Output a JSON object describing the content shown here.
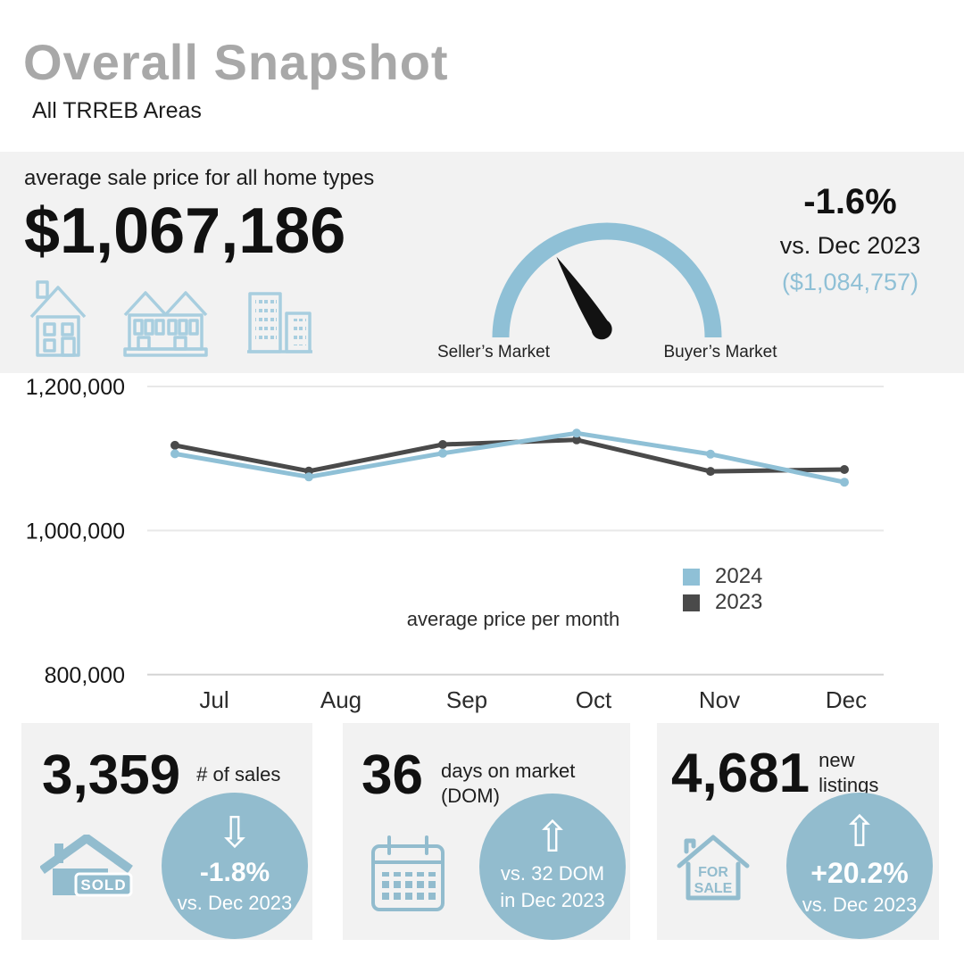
{
  "colors": {
    "panel": "#F2F2F2",
    "accent": "#8FC0D6",
    "badge": "#92BCCE",
    "iconlight": "#A8CEDF",
    "dark": "#4A4A4A",
    "titlegray": "#A8A8A8"
  },
  "header": {
    "title": "Overall Snapshot",
    "subtitle": "All TRREB Areas"
  },
  "price_panel": {
    "label": "average sale price for all home types",
    "value": "$1,067,186",
    "change_pct": "-1.6%",
    "change_vs": "vs. Dec 2023",
    "prev_value": "($1,084,757)",
    "gauge_left_label": "Seller’s Market",
    "gauge_right_label": "Buyer’s Market"
  },
  "chart_data": {
    "type": "line",
    "title": "average price per month",
    "categories": [
      "Jul",
      "Aug",
      "Sep",
      "Oct",
      "Nov",
      "Dec"
    ],
    "series": [
      {
        "name": "2024",
        "color": "#8FC0D6",
        "values": [
          1106617,
          1074425,
          1107291,
          1135215,
          1106050,
          1067186
        ]
      },
      {
        "name": "2023",
        "color": "#4A4A4A",
        "values": [
          1118374,
          1082496,
          1119428,
          1125928,
          1082179,
          1084757
        ]
      }
    ],
    "yticks": [
      {
        "label": "1,200,000",
        "value": 1200000
      },
      {
        "label": "1,000,000",
        "value": 1000000
      },
      {
        "label": "800,000",
        "value": 800000
      }
    ],
    "ylim": [
      800000,
      1250000
    ],
    "grid": true,
    "legend_position": "right-center"
  },
  "stats": [
    {
      "value": "3,359",
      "label": "# of sales",
      "icon": "sold-house-icon",
      "icon_text": "SOLD",
      "arrow_icon": "⇩",
      "badge_line1": "-1.8%",
      "badge_line2": "vs. Dec 2023"
    },
    {
      "value": "36",
      "label": "days on market (DOM)",
      "icon": "calendar-icon",
      "arrow_icon": "⇧",
      "badge_line1": "vs. 32 DOM",
      "badge_line2": "in Dec 2023"
    },
    {
      "value": "4,681",
      "label": "new listings",
      "icon": "for-sale-house-icon",
      "icon_text_line1": "FOR",
      "icon_text_line2": "SALE",
      "arrow_icon": "⇧",
      "badge_line1": "+20.2%",
      "badge_line2": "vs. Dec 2023"
    }
  ]
}
